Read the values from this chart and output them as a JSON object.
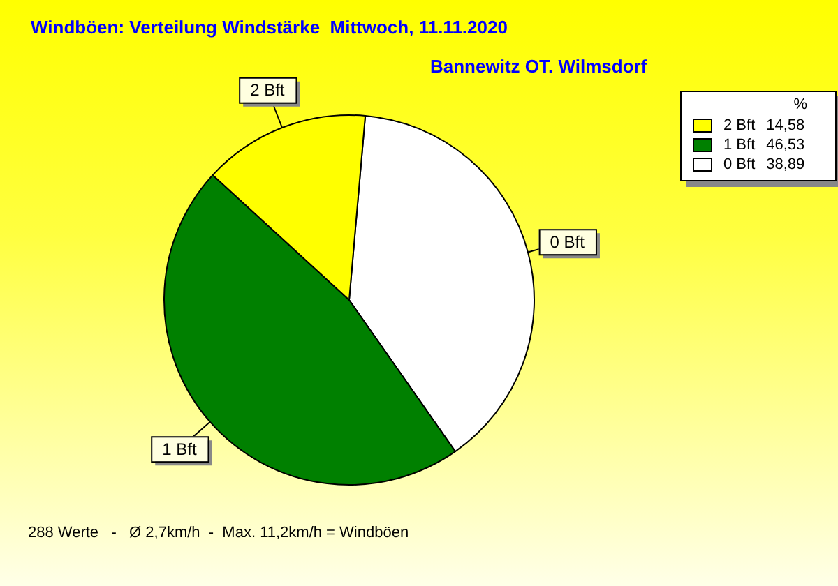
{
  "chart_data": {
    "type": "pie",
    "title": "Windböen: Verteilung Windstärke  Mittwoch, 11.11.2020",
    "subtitle": "Bannewitz OT. Wilmsdorf",
    "categories": [
      "2 Bft",
      "1 Bft",
      "0 Bft"
    ],
    "values": [
      14.58,
      46.53,
      38.89
    ],
    "value_labels": [
      "14,58",
      "46,53",
      "38,89"
    ],
    "colors": [
      "#ffff00",
      "#008000",
      "#ffffff"
    ],
    "legend": "top right",
    "legend_title": "%",
    "annotations": [
      "288 Werte   -   Ø 2,7km/h  -  Max. 11,2km/h = Windböen"
    ]
  }
}
